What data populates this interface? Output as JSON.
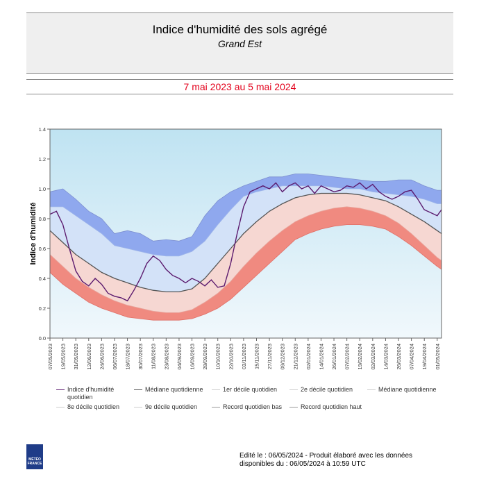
{
  "header": {
    "title": "Indice d'humidité des sols agrégé",
    "subtitle": "Grand Est",
    "period": "7 mai 2023 au 5 mai 2024"
  },
  "chart_data": {
    "type": "area",
    "ylabel": "Indice d'humidité",
    "ylim": [
      0,
      1.4
    ],
    "y_ticks": [
      "0.0",
      "0.2",
      "0.4",
      "0.6",
      "0.8",
      "1.0",
      "1.2",
      "1.4"
    ],
    "x_ticks": [
      "07/05/2023",
      "19/05/2023",
      "31/05/2023",
      "12/06/2023",
      "24/06/2023",
      "06/07/2023",
      "18/07/2023",
      "30/07/2023",
      "11/08/2023",
      "23/08/2023",
      "04/09/2023",
      "16/09/2023",
      "28/09/2023",
      "10/10/2023",
      "22/10/2023",
      "03/11/2023",
      "15/11/2023",
      "27/11/2023",
      "09/12/2023",
      "21/12/2023",
      "02/01/2024",
      "14/01/2024",
      "26/01/2024",
      "07/02/2024",
      "19/02/2024",
      "02/03/2024",
      "14/03/2024",
      "26/03/2024",
      "07/04/2024",
      "19/04/2024",
      "01/05/2024"
    ],
    "x_days": [
      0,
      12,
      24,
      36,
      48,
      60,
      72,
      84,
      96,
      108,
      120,
      132,
      144,
      156,
      168,
      180,
      192,
      204,
      216,
      228,
      240,
      252,
      264,
      276,
      288,
      300,
      312,
      324,
      336,
      348,
      360
    ],
    "x_range_days": [
      0,
      364
    ],
    "series": [
      {
        "name": "Record quotidien haut",
        "x": [
          0,
          12,
          24,
          36,
          48,
          60,
          72,
          84,
          96,
          108,
          120,
          132,
          144,
          156,
          168,
          180,
          192,
          204,
          216,
          228,
          240,
          252,
          264,
          276,
          288,
          300,
          312,
          324,
          336,
          348,
          360,
          364
        ],
        "values": [
          0.98,
          1.0,
          0.93,
          0.85,
          0.8,
          0.7,
          0.72,
          0.7,
          0.65,
          0.66,
          0.65,
          0.68,
          0.82,
          0.92,
          0.98,
          1.02,
          1.05,
          1.08,
          1.08,
          1.1,
          1.1,
          1.09,
          1.08,
          1.07,
          1.06,
          1.05,
          1.05,
          1.06,
          1.06,
          1.02,
          0.99,
          0.99
        ]
      },
      {
        "name": "9e décile quotidien",
        "x": [
          0,
          12,
          24,
          36,
          48,
          60,
          72,
          84,
          96,
          108,
          120,
          132,
          144,
          156,
          168,
          180,
          192,
          204,
          216,
          228,
          240,
          252,
          264,
          276,
          288,
          300,
          312,
          324,
          336,
          348,
          360,
          364
        ],
        "values": [
          0.88,
          0.88,
          0.82,
          0.76,
          0.7,
          0.62,
          0.6,
          0.58,
          0.56,
          0.55,
          0.55,
          0.58,
          0.65,
          0.76,
          0.86,
          0.95,
          0.98,
          1.0,
          1.02,
          1.02,
          1.02,
          1.02,
          1.01,
          1.0,
          1.0,
          0.98,
          0.97,
          0.96,
          0.95,
          0.93,
          0.9,
          0.9
        ]
      },
      {
        "name": "Médiane quotidienne",
        "x": [
          0,
          12,
          24,
          36,
          48,
          60,
          72,
          84,
          96,
          108,
          120,
          132,
          144,
          156,
          168,
          180,
          192,
          204,
          216,
          228,
          240,
          252,
          264,
          276,
          288,
          300,
          312,
          324,
          336,
          348,
          360,
          364
        ],
        "values": [
          0.72,
          0.64,
          0.56,
          0.5,
          0.44,
          0.4,
          0.37,
          0.34,
          0.32,
          0.31,
          0.31,
          0.33,
          0.4,
          0.5,
          0.6,
          0.7,
          0.78,
          0.85,
          0.9,
          0.94,
          0.96,
          0.97,
          0.97,
          0.97,
          0.96,
          0.94,
          0.92,
          0.88,
          0.83,
          0.78,
          0.72,
          0.7
        ]
      },
      {
        "name": "1er décile quotidien",
        "x": [
          0,
          12,
          24,
          36,
          48,
          60,
          72,
          84,
          96,
          108,
          120,
          132,
          144,
          156,
          168,
          180,
          192,
          204,
          216,
          228,
          240,
          252,
          264,
          276,
          288,
          300,
          312,
          324,
          336,
          348,
          360,
          364
        ],
        "values": [
          0.56,
          0.48,
          0.4,
          0.34,
          0.29,
          0.25,
          0.22,
          0.2,
          0.18,
          0.17,
          0.17,
          0.19,
          0.24,
          0.3,
          0.38,
          0.48,
          0.57,
          0.65,
          0.72,
          0.78,
          0.82,
          0.85,
          0.87,
          0.88,
          0.87,
          0.85,
          0.82,
          0.77,
          0.7,
          0.62,
          0.54,
          0.52
        ]
      },
      {
        "name": "Record quotidien bas",
        "x": [
          0,
          12,
          24,
          36,
          48,
          60,
          72,
          84,
          96,
          108,
          120,
          132,
          144,
          156,
          168,
          180,
          192,
          204,
          216,
          228,
          240,
          252,
          264,
          276,
          288,
          300,
          312,
          324,
          336,
          348,
          360,
          364
        ],
        "values": [
          0.44,
          0.36,
          0.3,
          0.24,
          0.2,
          0.17,
          0.14,
          0.13,
          0.12,
          0.12,
          0.12,
          0.13,
          0.16,
          0.2,
          0.26,
          0.34,
          0.42,
          0.5,
          0.58,
          0.66,
          0.7,
          0.73,
          0.75,
          0.76,
          0.76,
          0.75,
          0.73,
          0.68,
          0.62,
          0.55,
          0.48,
          0.46
        ]
      },
      {
        "name": "Indice d'humidité quotidien",
        "x": [
          0,
          6,
          12,
          18,
          24,
          30,
          36,
          42,
          48,
          54,
          60,
          66,
          72,
          78,
          84,
          90,
          96,
          102,
          108,
          114,
          120,
          126,
          132,
          138,
          144,
          150,
          156,
          162,
          168,
          174,
          180,
          186,
          192,
          198,
          204,
          210,
          216,
          222,
          228,
          234,
          240,
          246,
          252,
          258,
          264,
          270,
          276,
          282,
          288,
          294,
          300,
          306,
          312,
          318,
          324,
          330,
          336,
          342,
          348,
          354,
          360,
          364
        ],
        "values": [
          0.83,
          0.85,
          0.76,
          0.6,
          0.45,
          0.38,
          0.35,
          0.4,
          0.36,
          0.3,
          0.28,
          0.27,
          0.25,
          0.32,
          0.4,
          0.5,
          0.55,
          0.52,
          0.46,
          0.42,
          0.4,
          0.37,
          0.4,
          0.38,
          0.35,
          0.39,
          0.34,
          0.35,
          0.5,
          0.7,
          0.88,
          0.98,
          1.0,
          1.02,
          1.0,
          1.04,
          0.98,
          1.02,
          1.04,
          1.0,
          1.02,
          0.97,
          1.02,
          1.0,
          0.98,
          0.99,
          1.02,
          1.01,
          1.04,
          1.0,
          1.03,
          0.98,
          0.95,
          0.93,
          0.95,
          0.98,
          0.99,
          0.93,
          0.86,
          0.84,
          0.82,
          0.86
        ]
      }
    ],
    "legend": [
      "Indice d'humidité quotidien",
      "Médiane quotidienne",
      "1er décile quotidien",
      "2e décile quotidien",
      "Médiane quotidienne",
      "8e décile quotidien",
      "9e décile quotidien",
      "Record quotidien bas",
      "Record quotidien haut"
    ],
    "colors": {
      "index_line": "#5b1a6e",
      "median_line": "#555555",
      "bg_top": "#bfe3f2",
      "bg_bottom": "#eef7fc",
      "high_band": "#8fa8ee",
      "upper_light": "#d3e2f8",
      "lower_light": "#f6d7d2",
      "low_band": "#f08a80"
    },
    "grid": false
  },
  "footer": {
    "line1": "Edité le : 06/05/2024 - Produit élaboré avec les données",
    "line2": "disponibles du : 06/05/2024 à 10:59 UTC"
  },
  "logo": {
    "text1": "MÉTÉO",
    "text2": "FRANCE"
  }
}
